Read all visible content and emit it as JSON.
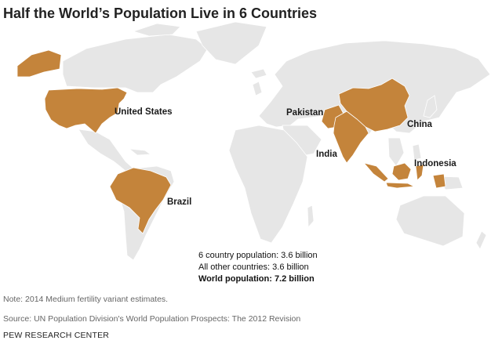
{
  "title": "Half the World’s Population Live in 6 Countries",
  "map": {
    "highlight_color": "#c4843b",
    "land_color": "#e6e6e6",
    "highlighted_countries": [
      {
        "id": "us",
        "label": "United States"
      },
      {
        "id": "brazil",
        "label": "Brazil"
      },
      {
        "id": "pakistan",
        "label": "Pakistan"
      },
      {
        "id": "india",
        "label": "India"
      },
      {
        "id": "china",
        "label": "China"
      },
      {
        "id": "indonesia",
        "label": "Indonesia"
      }
    ]
  },
  "stats": {
    "six_country": "6 country population: 3.6 billion",
    "other": "All other countries: 3.6 billion",
    "world": "World population: 7.2 billion"
  },
  "note": "Note: 2014 Medium fertility variant estimates.",
  "source": "Source: UN Population Division's World Population Prospects: The 2012 Revision",
  "brand": "PEW RESEARCH CENTER"
}
